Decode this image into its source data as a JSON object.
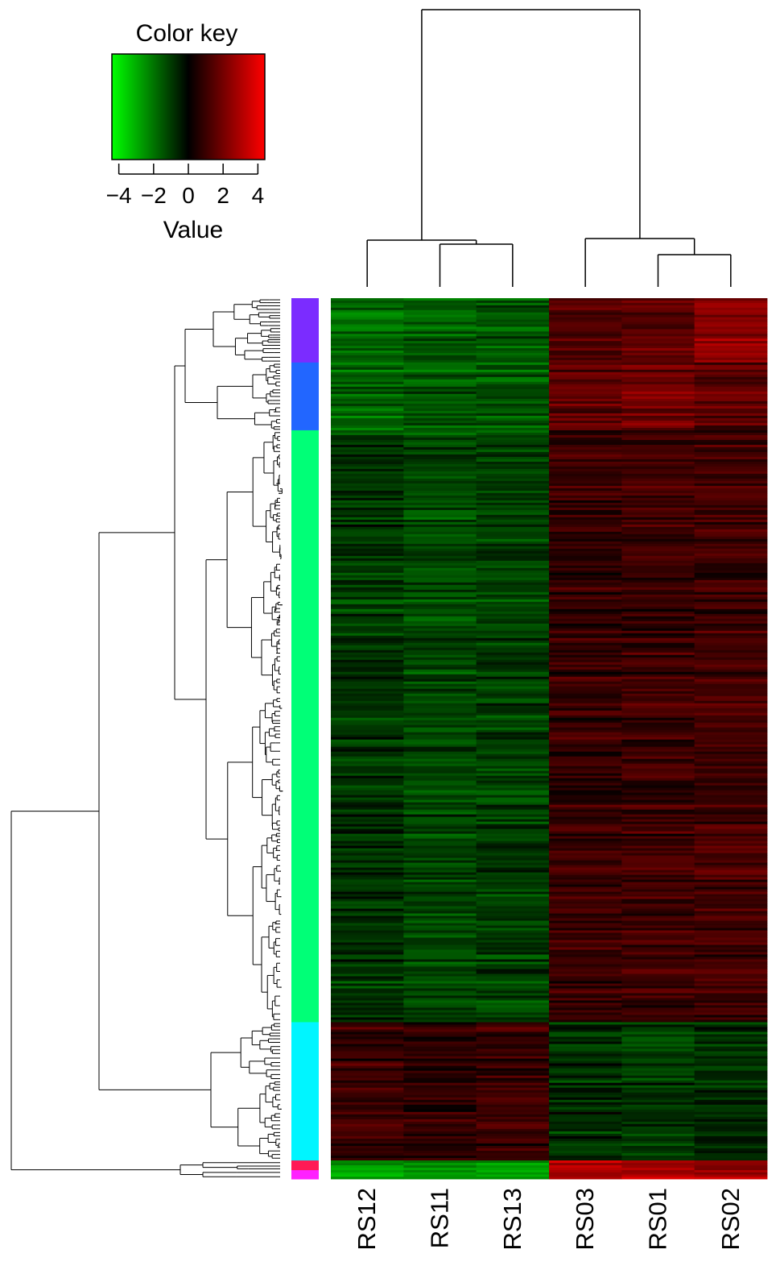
{
  "chart_data": {
    "type": "heatmap",
    "title": "",
    "color_key": {
      "title": "Color key",
      "axis_label": "Value",
      "range": [
        -4.4,
        4.4
      ],
      "ticks": [
        -4,
        -2,
        0,
        2,
        4
      ],
      "tick_labels": [
        "−4",
        "−2",
        "0",
        "2",
        "4"
      ],
      "colors": [
        "#00ff00",
        "#000000",
        "#ff0000"
      ]
    },
    "columns": [
      "RS12",
      "RS11",
      "RS13",
      "RS03",
      "RS01",
      "RS02"
    ],
    "column_dendrogram": "((RS12,(RS11,RS13)),(RS03,(RS01,RS02)))",
    "row_dendrogram": "shown",
    "row_clusters": [
      {
        "color": "#7b2cff",
        "share": 0.073,
        "values": [
          -1.9,
          -1.6,
          -1.4,
          1.3,
          1.6,
          2.4
        ]
      },
      {
        "color": "#2266ff",
        "share": 0.077,
        "values": [
          -1.7,
          -1.5,
          -1.5,
          1.6,
          1.9,
          1.5
        ]
      },
      {
        "color": "#00ff77",
        "share": 0.672,
        "values": [
          -0.9,
          -1.2,
          -1.1,
          0.9,
          1.0,
          1.1
        ]
      },
      {
        "color": "#00f5ff",
        "share": 0.157,
        "values": [
          0.9,
          0.8,
          0.9,
          -0.8,
          -1.0,
          -0.8
        ]
      },
      {
        "color": "#ff1a55",
        "share": 0.011,
        "values": [
          -2.6,
          -2.4,
          -2.5,
          3.0,
          2.8,
          2.6
        ]
      },
      {
        "color": "#ff22ff",
        "share": 0.01,
        "values": [
          -2.8,
          -2.6,
          -2.7,
          3.2,
          3.0,
          2.8
        ]
      }
    ]
  }
}
